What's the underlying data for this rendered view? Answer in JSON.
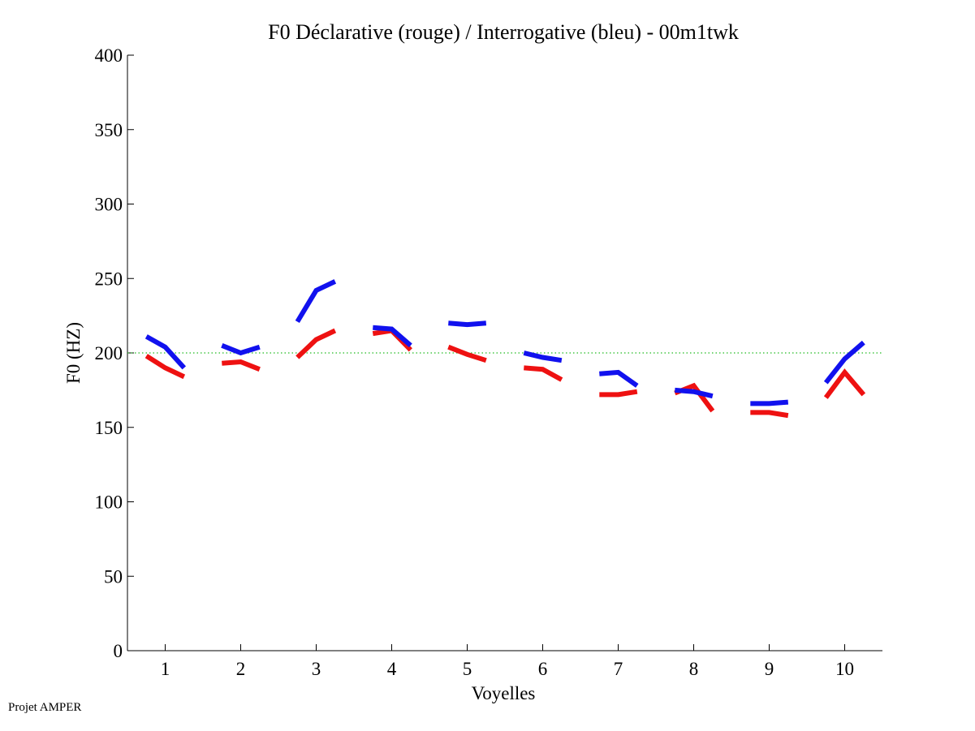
{
  "chart_data": {
    "type": "line",
    "title": "F0 Déclarative (rouge) / Interrogative (bleu) - 00m1twk",
    "xlabel": "Voyelles",
    "ylabel": "F0 (HZ)",
    "xlim": [
      0.5,
      10.5
    ],
    "ylim": [
      0,
      400
    ],
    "xticks": [
      "1",
      "2",
      "3",
      "4",
      "5",
      "6",
      "7",
      "8",
      "9",
      "10"
    ],
    "yticks": [
      "0",
      "50",
      "100",
      "150",
      "200",
      "250",
      "300",
      "350",
      "400"
    ],
    "reference_line": {
      "y": 200,
      "color": "#22bb22",
      "style": "dotted"
    },
    "series": [
      {
        "color": "#ee1111",
        "segments": [
          [
            [
              0.75,
              198
            ],
            [
              1.0,
              190
            ],
            [
              1.25,
              184
            ]
          ],
          [
            [
              1.75,
              193
            ],
            [
              2.0,
              194
            ],
            [
              2.25,
              189
            ]
          ],
          [
            [
              2.75,
              197
            ],
            [
              3.0,
              209
            ],
            [
              3.25,
              215
            ]
          ],
          [
            [
              3.75,
              213
            ],
            [
              4.0,
              215
            ],
            [
              4.25,
              202
            ]
          ],
          [
            [
              4.75,
              204
            ],
            [
              5.0,
              199
            ],
            [
              5.25,
              195
            ]
          ],
          [
            [
              5.75,
              190
            ],
            [
              6.0,
              189
            ],
            [
              6.25,
              182
            ]
          ],
          [
            [
              6.75,
              172
            ],
            [
              7.0,
              172
            ],
            [
              7.25,
              174
            ]
          ],
          [
            [
              7.75,
              173
            ],
            [
              8.0,
              178
            ],
            [
              8.25,
              161
            ]
          ],
          [
            [
              8.75,
              160
            ],
            [
              9.0,
              160
            ],
            [
              9.25,
              158
            ]
          ],
          [
            [
              9.75,
              170
            ],
            [
              10.0,
              187
            ],
            [
              10.25,
              172
            ]
          ]
        ]
      },
      {
        "color": "#1111ee",
        "segments": [
          [
            [
              0.75,
              211
            ],
            [
              1.0,
              204
            ],
            [
              1.25,
              190
            ]
          ],
          [
            [
              1.75,
              205
            ],
            [
              2.0,
              200
            ],
            [
              2.25,
              204
            ]
          ],
          [
            [
              2.75,
              221
            ],
            [
              3.0,
              242
            ],
            [
              3.25,
              248
            ]
          ],
          [
            [
              3.75,
              217
            ],
            [
              4.0,
              216
            ],
            [
              4.25,
              205
            ]
          ],
          [
            [
              4.75,
              220
            ],
            [
              5.0,
              219
            ],
            [
              5.25,
              220
            ]
          ],
          [
            [
              5.75,
              200
            ],
            [
              6.0,
              197
            ],
            [
              6.25,
              195
            ]
          ],
          [
            [
              6.75,
              186
            ],
            [
              7.0,
              187
            ],
            [
              7.25,
              178
            ]
          ],
          [
            [
              7.75,
              175
            ],
            [
              8.0,
              174
            ],
            [
              8.25,
              171
            ]
          ],
          [
            [
              8.75,
              166
            ],
            [
              9.0,
              166
            ],
            [
              9.25,
              167
            ]
          ],
          [
            [
              9.75,
              180
            ],
            [
              10.0,
              196
            ],
            [
              10.25,
              207
            ]
          ]
        ]
      }
    ]
  },
  "footer": "Projet AMPER"
}
